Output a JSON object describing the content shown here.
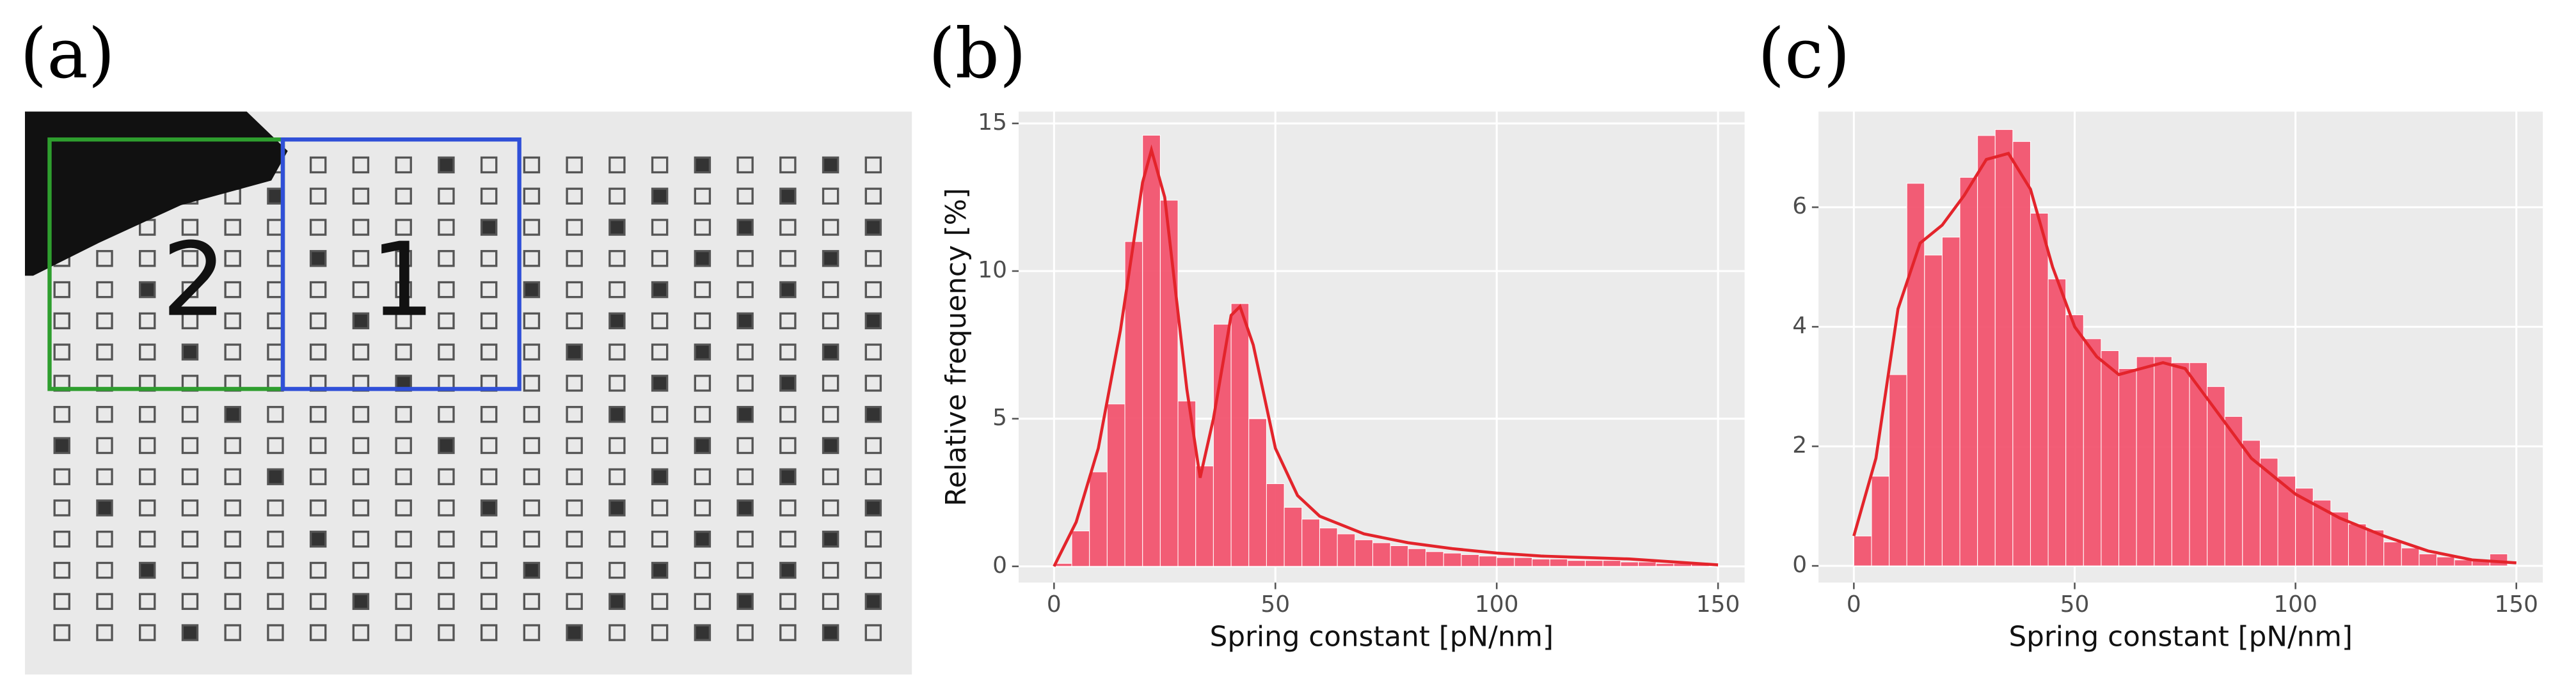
{
  "image_panel": {
    "label": "(a)",
    "regions": [
      {
        "label": "2",
        "color": "#2e9e2e"
      },
      {
        "label": "1",
        "color": "#3050d8"
      }
    ]
  },
  "chart_data": [
    {
      "panel_label": "(b)",
      "type": "histogram",
      "x_label": "Spring constant [pN/nm]",
      "y_label": "Relative frequency [%]",
      "bins": [
        0,
        4,
        8,
        12,
        16,
        20,
        24,
        28,
        32,
        36,
        40,
        44,
        48,
        52,
        56,
        60,
        64,
        68,
        72,
        76,
        80,
        84,
        88,
        92,
        96,
        100,
        104,
        108,
        112,
        116,
        120,
        124,
        128,
        132,
        136,
        140,
        144,
        148
      ],
      "values": [
        0.1,
        1.2,
        3.2,
        5.5,
        11.0,
        14.6,
        12.4,
        5.6,
        3.4,
        8.2,
        8.9,
        5.0,
        2.8,
        2.0,
        1.6,
        1.3,
        1.1,
        0.9,
        0.8,
        0.7,
        0.6,
        0.5,
        0.45,
        0.4,
        0.35,
        0.3,
        0.3,
        0.25,
        0.25,
        0.2,
        0.2,
        0.2,
        0.15,
        0.15,
        0.1,
        0.1,
        0.1
      ],
      "color": "#f2546f",
      "curve": {
        "x": [
          0,
          5,
          10,
          15,
          20,
          22,
          25,
          30,
          33,
          36,
          40,
          42,
          45,
          50,
          55,
          60,
          70,
          80,
          90,
          100,
          110,
          120,
          130,
          140,
          150
        ],
        "values": [
          0,
          1.5,
          4,
          8,
          13,
          14.1,
          12.5,
          6,
          3.0,
          5,
          8.5,
          8.8,
          7.5,
          4,
          2.4,
          1.7,
          1.1,
          0.8,
          0.6,
          0.45,
          0.35,
          0.3,
          0.25,
          0.15,
          0.05
        ],
        "color": "#e3242b"
      },
      "xlim": [
        -8,
        156
      ],
      "ylim": [
        -0.55,
        15.4
      ],
      "xticks": [
        0,
        50,
        100,
        150
      ],
      "yticks": [
        0,
        5,
        10,
        15
      ],
      "grid": true
    },
    {
      "panel_label": "(c)",
      "type": "histogram",
      "x_label": "Spring constant [pN/nm]",
      "bins": [
        0,
        4,
        8,
        12,
        16,
        20,
        24,
        28,
        32,
        36,
        40,
        44,
        48,
        52,
        56,
        60,
        64,
        68,
        72,
        76,
        80,
        84,
        88,
        92,
        96,
        100,
        104,
        108,
        112,
        116,
        120,
        124,
        128,
        132,
        136,
        140,
        144,
        148
      ],
      "values": [
        0.5,
        1.5,
        3.2,
        6.4,
        5.2,
        5.5,
        6.5,
        7.2,
        7.3,
        7.1,
        5.9,
        4.8,
        4.2,
        3.8,
        3.6,
        3.3,
        3.5,
        3.5,
        3.4,
        3.4,
        3.0,
        2.5,
        2.1,
        1.8,
        1.5,
        1.3,
        1.1,
        0.9,
        0.7,
        0.6,
        0.4,
        0.3,
        0.2,
        0.15,
        0.1,
        0.1,
        0.2
      ],
      "color": "#f2546f",
      "curve": {
        "x": [
          0,
          5,
          10,
          15,
          20,
          25,
          30,
          35,
          40,
          45,
          50,
          55,
          60,
          65,
          70,
          75,
          80,
          90,
          100,
          110,
          120,
          130,
          140,
          150
        ],
        "values": [
          0.5,
          1.8,
          4.3,
          5.4,
          5.7,
          6.2,
          6.8,
          6.9,
          6.3,
          5.0,
          4.0,
          3.5,
          3.2,
          3.3,
          3.4,
          3.3,
          2.8,
          1.8,
          1.2,
          0.8,
          0.5,
          0.25,
          0.1,
          0.05
        ],
        "color": "#e3242b"
      },
      "xlim": [
        -8,
        156
      ],
      "ylim": [
        -0.28,
        7.6
      ],
      "xticks": [
        0,
        50,
        100,
        150
      ],
      "yticks": [
        0,
        2,
        4,
        6
      ],
      "grid": true
    }
  ]
}
